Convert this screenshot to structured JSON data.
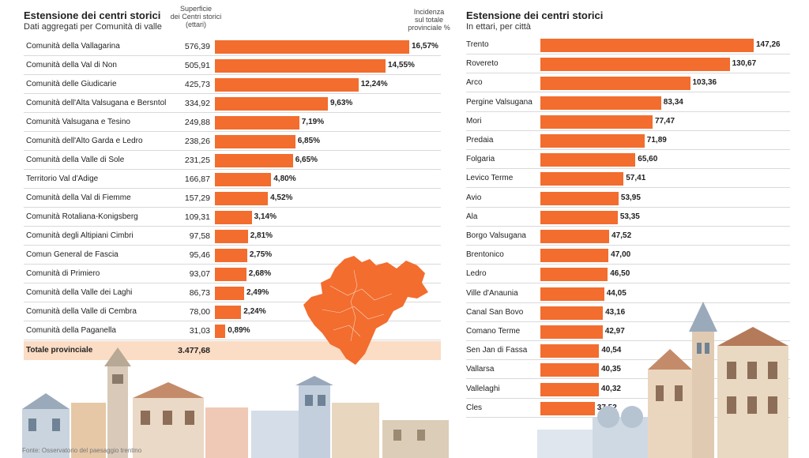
{
  "source": "Fonte: Osservatorio del paesaggio trentino",
  "colors": {
    "bar": "#f26d2e",
    "total_bg": "#fbdcc4",
    "map": "#f26d2e"
  },
  "left": {
    "title": "Estensione dei centri storici",
    "subtitle": "Dati aggregati per Comunità di valle",
    "col_surface": [
      "Superficie",
      "dei Centri storici",
      "(ettari)"
    ],
    "col_share": [
      "Incidenza",
      "sul totale",
      "provinciale %"
    ],
    "total_label": "Totale provinciale",
    "total_value": "3.477,68"
  },
  "right": {
    "title": "Estensione dei centri storici",
    "subtitle": "In ettari, per città"
  },
  "chart_data": [
    {
      "type": "bar",
      "title": "Estensione dei centri storici",
      "subtitle": "Dati aggregati per Comunità di valle",
      "categories": [
        "Comunità della Vallagarina",
        "Comunità della Val di Non",
        "Comunità delle Giudicarie",
        "Comunità dell'Alta Valsugana e Bersntol",
        "Comunità Valsugana e Tesino",
        "Comunità dell'Alto Garda e Ledro",
        "Comunità della Valle di Sole",
        "Territorio Val d'Adige",
        "Comunità della Val di Fiemme",
        "Comunità Rotaliana-Konigsberg",
        "Comunità degli Altipiani Cimbri",
        "Comun General de Fascia",
        "Comunità di Primiero",
        "Comunità della Valle dei Laghi",
        "Comunità della Valle di Cembra",
        "Comunità della Paganella"
      ],
      "surface_labels": [
        "576,39",
        "505,91",
        "425,73",
        "334,92",
        "249,88",
        "238,26",
        "231,25",
        "166,87",
        "157,29",
        "109,31",
        "97,58",
        "95,46",
        "93,07",
        "86,73",
        "78,00",
        "31,03"
      ],
      "values": [
        16.57,
        14.55,
        12.24,
        9.63,
        7.19,
        6.85,
        6.65,
        4.8,
        4.52,
        3.14,
        2.81,
        2.75,
        2.68,
        2.49,
        2.24,
        0.89
      ],
      "value_labels": [
        "16,57%",
        "14,55%",
        "12,24%",
        "9,63%",
        "7,19%",
        "6,85%",
        "6,65%",
        "4,80%",
        "4,52%",
        "3,14%",
        "2,81%",
        "2,75%",
        "2,68%",
        "2,49%",
        "2,24%",
        "0,89%"
      ],
      "xlim": [
        0,
        16.57
      ]
    },
    {
      "type": "bar",
      "title": "Estensione dei centri storici",
      "subtitle": "In ettari, per città",
      "categories": [
        "Trento",
        "Rovereto",
        "Arco",
        "Pergine Valsugana",
        "Mori",
        "Predaia",
        "Folgaria",
        "Levico Terme",
        "Avio",
        "Ala",
        "Borgo Valsugana",
        "Brentonico",
        "Ledro",
        "Ville d'Anaunia",
        "Canal San Bovo",
        "Comano Terme",
        "Sen Jan di Fassa",
        "Vallarsa",
        "Vallelaghi",
        "Cles"
      ],
      "values": [
        147.26,
        130.67,
        103.36,
        83.34,
        77.47,
        71.89,
        65.6,
        57.41,
        53.95,
        53.35,
        47.52,
        47.0,
        46.5,
        44.05,
        43.16,
        42.97,
        40.54,
        40.35,
        40.32,
        37.52
      ],
      "value_labels": [
        "147,26",
        "130,67",
        "103,36",
        "83,34",
        "77,47",
        "71,89",
        "65,60",
        "57,41",
        "53,95",
        "53,35",
        "47,52",
        "47,00",
        "46,50",
        "44,05",
        "43,16",
        "42,97",
        "40,54",
        "40,35",
        "40,32",
        "37,52"
      ],
      "xlim": [
        0,
        147.26
      ]
    }
  ]
}
